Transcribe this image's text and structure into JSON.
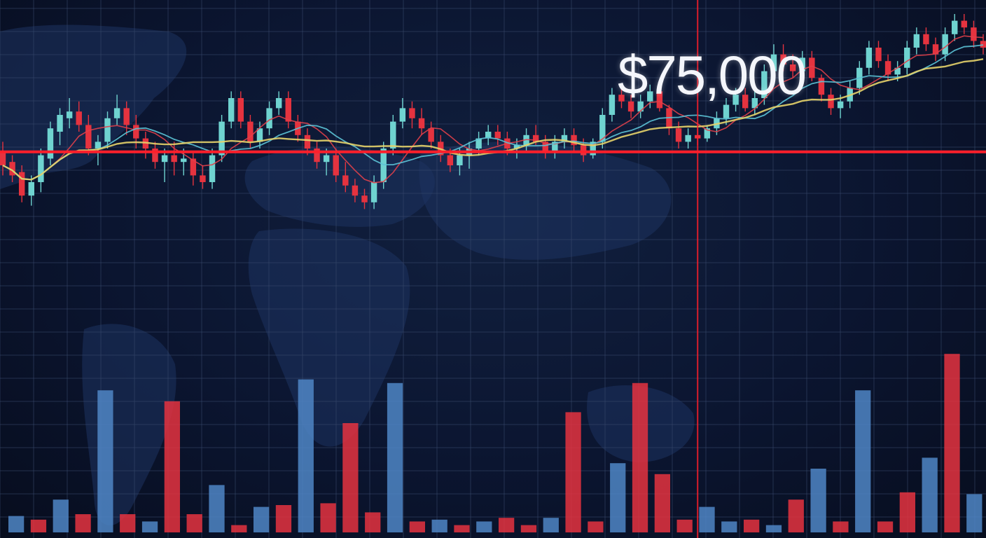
{
  "colors": {
    "background": "#0b1530",
    "grid": "#3a4b6e",
    "map": "#1d3360",
    "bullish": "#6fd3d0",
    "bearish": "#e5333f",
    "ma_red": "#e0404a",
    "ma_yellow": "#e6d36a",
    "ma_cyan": "#5cc3d6",
    "volume_blue": "#4f86c6",
    "volume_red": "#e5333f",
    "price_label": "#f4f6fb",
    "support_line": "#ff1f2b"
  },
  "price_label": "$75,000",
  "chart_data": {
    "type": "candlestick",
    "ylim": [
      0,
      100
    ],
    "grid": true,
    "support_level": 59,
    "cursor_index": 73,
    "candles": [
      {
        "o": 59,
        "h": 62,
        "l": 52,
        "c": 55
      },
      {
        "o": 56,
        "h": 58,
        "l": 50,
        "c": 52
      },
      {
        "o": 53,
        "h": 55,
        "l": 44,
        "c": 46
      },
      {
        "o": 46,
        "h": 52,
        "l": 43,
        "c": 50
      },
      {
        "o": 50,
        "h": 60,
        "l": 47,
        "c": 58
      },
      {
        "o": 57,
        "h": 68,
        "l": 55,
        "c": 66
      },
      {
        "o": 65,
        "h": 72,
        "l": 61,
        "c": 70
      },
      {
        "o": 69,
        "h": 75,
        "l": 66,
        "c": 71
      },
      {
        "o": 71,
        "h": 74,
        "l": 65,
        "c": 67
      },
      {
        "o": 67,
        "h": 70,
        "l": 58,
        "c": 60
      },
      {
        "o": 60,
        "h": 64,
        "l": 55,
        "c": 62
      },
      {
        "o": 62,
        "h": 71,
        "l": 60,
        "c": 69
      },
      {
        "o": 69,
        "h": 76,
        "l": 67,
        "c": 72
      },
      {
        "o": 72,
        "h": 74,
        "l": 64,
        "c": 67
      },
      {
        "o": 67,
        "h": 70,
        "l": 60,
        "c": 63
      },
      {
        "o": 63,
        "h": 65,
        "l": 57,
        "c": 60
      },
      {
        "o": 60,
        "h": 62,
        "l": 54,
        "c": 56
      },
      {
        "o": 56,
        "h": 60,
        "l": 50,
        "c": 58
      },
      {
        "o": 58,
        "h": 62,
        "l": 52,
        "c": 56
      },
      {
        "o": 56,
        "h": 60,
        "l": 52,
        "c": 57
      },
      {
        "o": 57,
        "h": 59,
        "l": 49,
        "c": 52
      },
      {
        "o": 52,
        "h": 55,
        "l": 48,
        "c": 50
      },
      {
        "o": 50,
        "h": 60,
        "l": 48,
        "c": 58
      },
      {
        "o": 58,
        "h": 70,
        "l": 56,
        "c": 68
      },
      {
        "o": 68,
        "h": 77,
        "l": 66,
        "c": 75
      },
      {
        "o": 75,
        "h": 77,
        "l": 66,
        "c": 68
      },
      {
        "o": 68,
        "h": 70,
        "l": 60,
        "c": 62
      },
      {
        "o": 62,
        "h": 68,
        "l": 60,
        "c": 66
      },
      {
        "o": 66,
        "h": 74,
        "l": 64,
        "c": 72
      },
      {
        "o": 72,
        "h": 77,
        "l": 70,
        "c": 75
      },
      {
        "o": 75,
        "h": 77,
        "l": 66,
        "c": 68
      },
      {
        "o": 68,
        "h": 70,
        "l": 62,
        "c": 64
      },
      {
        "o": 64,
        "h": 66,
        "l": 58,
        "c": 60
      },
      {
        "o": 60,
        "h": 62,
        "l": 54,
        "c": 56
      },
      {
        "o": 56,
        "h": 60,
        "l": 52,
        "c": 58
      },
      {
        "o": 58,
        "h": 60,
        "l": 50,
        "c": 52
      },
      {
        "o": 52,
        "h": 56,
        "l": 47,
        "c": 49
      },
      {
        "o": 49,
        "h": 51,
        "l": 44,
        "c": 46
      },
      {
        "o": 46,
        "h": 48,
        "l": 42,
        "c": 44
      },
      {
        "o": 44,
        "h": 52,
        "l": 42,
        "c": 50
      },
      {
        "o": 50,
        "h": 62,
        "l": 48,
        "c": 60
      },
      {
        "o": 60,
        "h": 70,
        "l": 58,
        "c": 68
      },
      {
        "o": 68,
        "h": 75,
        "l": 66,
        "c": 72
      },
      {
        "o": 72,
        "h": 74,
        "l": 66,
        "c": 69
      },
      {
        "o": 69,
        "h": 72,
        "l": 64,
        "c": 66
      },
      {
        "o": 66,
        "h": 68,
        "l": 60,
        "c": 62
      },
      {
        "o": 62,
        "h": 64,
        "l": 56,
        "c": 58
      },
      {
        "o": 58,
        "h": 60,
        "l": 53,
        "c": 55
      },
      {
        "o": 55,
        "h": 60,
        "l": 52,
        "c": 58
      },
      {
        "o": 58,
        "h": 62,
        "l": 54,
        "c": 60
      },
      {
        "o": 60,
        "h": 65,
        "l": 58,
        "c": 63
      },
      {
        "o": 63,
        "h": 67,
        "l": 61,
        "c": 65
      },
      {
        "o": 65,
        "h": 67,
        "l": 61,
        "c": 63
      },
      {
        "o": 63,
        "h": 65,
        "l": 58,
        "c": 60
      },
      {
        "o": 60,
        "h": 63,
        "l": 57,
        "c": 61
      },
      {
        "o": 61,
        "h": 66,
        "l": 59,
        "c": 64
      },
      {
        "o": 64,
        "h": 67,
        "l": 61,
        "c": 62
      },
      {
        "o": 62,
        "h": 64,
        "l": 57,
        "c": 59
      },
      {
        "o": 59,
        "h": 64,
        "l": 57,
        "c": 62
      },
      {
        "o": 62,
        "h": 66,
        "l": 60,
        "c": 64
      },
      {
        "o": 64,
        "h": 66,
        "l": 59,
        "c": 61
      },
      {
        "o": 61,
        "h": 63,
        "l": 56,
        "c": 58
      },
      {
        "o": 58,
        "h": 63,
        "l": 57,
        "c": 62
      },
      {
        "o": 62,
        "h": 72,
        "l": 60,
        "c": 70
      },
      {
        "o": 70,
        "h": 78,
        "l": 68,
        "c": 76
      },
      {
        "o": 76,
        "h": 79,
        "l": 72,
        "c": 74
      },
      {
        "o": 74,
        "h": 76,
        "l": 69,
        "c": 71
      },
      {
        "o": 71,
        "h": 76,
        "l": 69,
        "c": 74
      },
      {
        "o": 74,
        "h": 79,
        "l": 72,
        "c": 77
      },
      {
        "o": 77,
        "h": 79,
        "l": 71,
        "c": 72
      },
      {
        "o": 72,
        "h": 73,
        "l": 64,
        "c": 66
      },
      {
        "o": 66,
        "h": 68,
        "l": 60,
        "c": 62
      },
      {
        "o": 62,
        "h": 66,
        "l": 60,
        "c": 64
      },
      {
        "o": 64,
        "h": 66,
        "l": 61,
        "c": 63
      },
      {
        "o": 63,
        "h": 67,
        "l": 62,
        "c": 66
      },
      {
        "o": 66,
        "h": 71,
        "l": 64,
        "c": 69
      },
      {
        "o": 69,
        "h": 75,
        "l": 67,
        "c": 73
      },
      {
        "o": 73,
        "h": 78,
        "l": 71,
        "c": 76
      },
      {
        "o": 76,
        "h": 78,
        "l": 71,
        "c": 72
      },
      {
        "o": 72,
        "h": 77,
        "l": 70,
        "c": 75
      },
      {
        "o": 75,
        "h": 85,
        "l": 73,
        "c": 83
      },
      {
        "o": 83,
        "h": 91,
        "l": 81,
        "c": 88
      },
      {
        "o": 88,
        "h": 91,
        "l": 83,
        "c": 85
      },
      {
        "o": 85,
        "h": 88,
        "l": 81,
        "c": 83
      },
      {
        "o": 83,
        "h": 89,
        "l": 81,
        "c": 87
      },
      {
        "o": 87,
        "h": 89,
        "l": 80,
        "c": 81
      },
      {
        "o": 81,
        "h": 82,
        "l": 74,
        "c": 76
      },
      {
        "o": 76,
        "h": 78,
        "l": 70,
        "c": 72
      },
      {
        "o": 72,
        "h": 76,
        "l": 69,
        "c": 74
      },
      {
        "o": 74,
        "h": 80,
        "l": 72,
        "c": 78
      },
      {
        "o": 78,
        "h": 86,
        "l": 76,
        "c": 84
      },
      {
        "o": 84,
        "h": 92,
        "l": 82,
        "c": 90
      },
      {
        "o": 90,
        "h": 92,
        "l": 84,
        "c": 86
      },
      {
        "o": 86,
        "h": 88,
        "l": 80,
        "c": 82
      },
      {
        "o": 82,
        "h": 86,
        "l": 80,
        "c": 84
      },
      {
        "o": 84,
        "h": 92,
        "l": 82,
        "c": 90
      },
      {
        "o": 90,
        "h": 96,
        "l": 88,
        "c": 94
      },
      {
        "o": 94,
        "h": 96,
        "l": 89,
        "c": 91
      },
      {
        "o": 91,
        "h": 93,
        "l": 86,
        "c": 88
      },
      {
        "o": 88,
        "h": 96,
        "l": 86,
        "c": 94
      },
      {
        "o": 94,
        "h": 100,
        "l": 92,
        "c": 98
      },
      {
        "o": 98,
        "h": 100,
        "l": 94,
        "c": 96
      },
      {
        "o": 96,
        "h": 98,
        "l": 90,
        "c": 92
      },
      {
        "o": 92,
        "h": 94,
        "l": 88,
        "c": 90
      }
    ],
    "volume_ylim": [
      0,
      100
    ],
    "volume": [
      {
        "v": 9,
        "dir": "up"
      },
      {
        "v": 7,
        "dir": "down"
      },
      {
        "v": 18,
        "dir": "up"
      },
      {
        "v": 10,
        "dir": "down"
      },
      {
        "v": 78,
        "dir": "up"
      },
      {
        "v": 10,
        "dir": "down"
      },
      {
        "v": 6,
        "dir": "up"
      },
      {
        "v": 72,
        "dir": "down"
      },
      {
        "v": 10,
        "dir": "down"
      },
      {
        "v": 26,
        "dir": "up"
      },
      {
        "v": 4,
        "dir": "down"
      },
      {
        "v": 14,
        "dir": "up"
      },
      {
        "v": 15,
        "dir": "down"
      },
      {
        "v": 84,
        "dir": "up"
      },
      {
        "v": 16,
        "dir": "down"
      },
      {
        "v": 60,
        "dir": "down"
      },
      {
        "v": 11,
        "dir": "down"
      },
      {
        "v": 82,
        "dir": "up"
      },
      {
        "v": 6,
        "dir": "down"
      },
      {
        "v": 7,
        "dir": "up"
      },
      {
        "v": 4,
        "dir": "down"
      },
      {
        "v": 6,
        "dir": "up"
      },
      {
        "v": 8,
        "dir": "down"
      },
      {
        "v": 4,
        "dir": "down"
      },
      {
        "v": 8,
        "dir": "up"
      },
      {
        "v": 66,
        "dir": "down"
      },
      {
        "v": 6,
        "dir": "down"
      },
      {
        "v": 38,
        "dir": "up"
      },
      {
        "v": 82,
        "dir": "down"
      },
      {
        "v": 32,
        "dir": "down"
      },
      {
        "v": 7,
        "dir": "down"
      },
      {
        "v": 14,
        "dir": "up"
      },
      {
        "v": 6,
        "dir": "up"
      },
      {
        "v": 7,
        "dir": "down"
      },
      {
        "v": 4,
        "dir": "up"
      },
      {
        "v": 18,
        "dir": "down"
      },
      {
        "v": 35,
        "dir": "up"
      },
      {
        "v": 6,
        "dir": "down"
      },
      {
        "v": 78,
        "dir": "up"
      },
      {
        "v": 6,
        "dir": "down"
      },
      {
        "v": 22,
        "dir": "down"
      },
      {
        "v": 41,
        "dir": "up"
      },
      {
        "v": 98,
        "dir": "down"
      },
      {
        "v": 21,
        "dir": "up"
      }
    ]
  }
}
